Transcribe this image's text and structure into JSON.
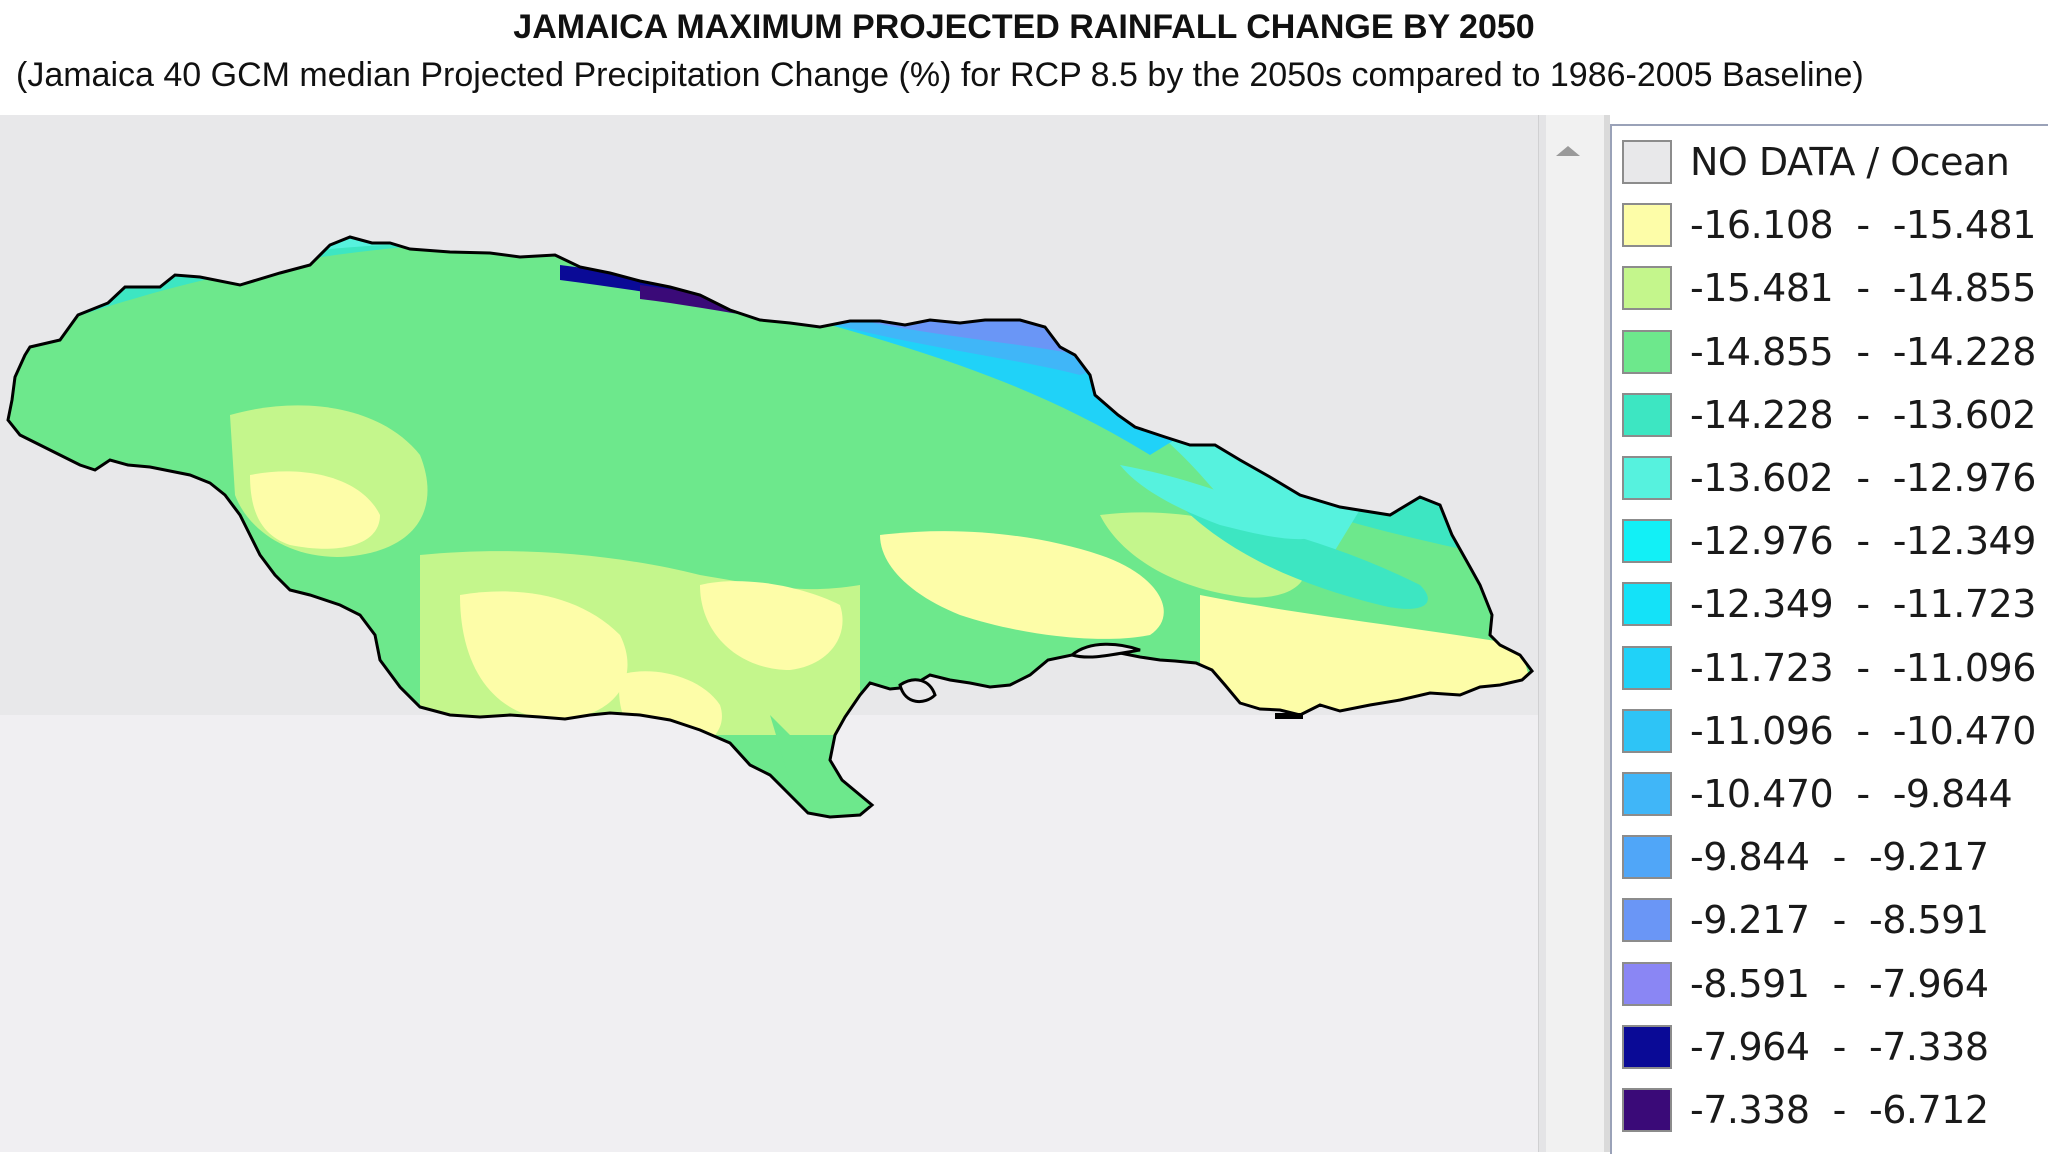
{
  "header": {
    "title": "JAMAICA MAXIMUM PROJECTED RAINFALL CHANGE BY 2050",
    "subtitle": "(Jamaica 40 GCM median Projected Precipitation Change (%) for RCP 8.5 by the 2050s compared to 1986-2005 Baseline)"
  },
  "legend": {
    "items": [
      {
        "label": "NO DATA / Ocean",
        "color": "#e8e8ea"
      },
      {
        "label": "-16.108  -  -15.481",
        "color": "#fdfda8"
      },
      {
        "label": "-15.481  -  -14.855",
        "color": "#c4f68c"
      },
      {
        "label": "-14.855  -  -14.228",
        "color": "#6de88c"
      },
      {
        "label": "-14.228  -  -13.602",
        "color": "#3de6c2"
      },
      {
        "label": "-13.602  -  -12.976",
        "color": "#56f2de"
      },
      {
        "label": "-12.976  -  -12.349",
        "color": "#12f0f6"
      },
      {
        "label": "-12.349  -  -11.723",
        "color": "#14e2f8"
      },
      {
        "label": "-11.723  -  -11.096",
        "color": "#20d2f8"
      },
      {
        "label": "-11.096  -  -10.470",
        "color": "#2ec4f6"
      },
      {
        "label": "-10.470  -  -9.844",
        "color": "#40b6f8"
      },
      {
        "label": "-9.844  -  -9.217",
        "color": "#50a6f8"
      },
      {
        "label": "-9.217  -  -8.591",
        "color": "#6a96f6"
      },
      {
        "label": "-8.591  -  -7.964",
        "color": "#8a86f4"
      },
      {
        "label": "-7.964  -  -7.338",
        "color": "#0a0a96"
      },
      {
        "label": "-7.338  -  -6.712",
        "color": "#3a0a78"
      }
    ]
  },
  "map": {
    "ocean_color": "#e8e8ea",
    "outline_color": "#000000"
  }
}
